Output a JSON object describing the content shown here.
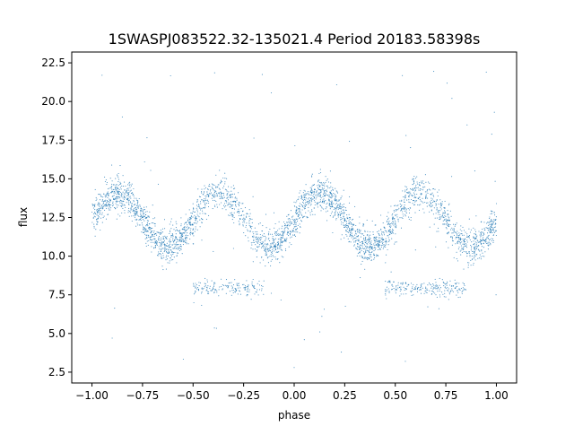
{
  "chart_data": {
    "type": "scatter",
    "title": "1SWASPJ083522.32-135021.4 Period 20183.58398s",
    "xlabel": "phase",
    "ylabel": "flux",
    "xlim": [
      -1.1,
      1.1
    ],
    "ylim": [
      1.8,
      23.2
    ],
    "x_ticks": [
      -1.0,
      -0.75,
      -0.5,
      -0.25,
      0.0,
      0.25,
      0.5,
      0.75,
      1.0
    ],
    "x_tick_labels": [
      "−1.00",
      "−0.75",
      "−0.50",
      "−0.25",
      "0.00",
      "0.25",
      "0.50",
      "0.75",
      "1.00"
    ],
    "y_ticks": [
      2.5,
      5.0,
      7.5,
      10.0,
      12.5,
      15.0,
      17.5,
      20.0,
      22.5
    ],
    "y_tick_labels": [
      "2.5",
      "5.0",
      "7.5",
      "10.0",
      "12.5",
      "15.0",
      "17.5",
      "20.0",
      "22.5"
    ],
    "grid": false,
    "marker_color": "#1f77b4",
    "phase_range": [
      -1.0,
      1.0
    ],
    "light_curve_model": {
      "mean_flux": 12.35,
      "amplitude": 1.75,
      "peak_phase": 0.125,
      "noise": 0.55,
      "low_branch_flux": 7.95,
      "low_branch_phase_windows": [
        [
          -0.5,
          -0.15
        ],
        [
          0.45,
          0.85
        ]
      ]
    },
    "outlier_flux_range": [
      2.8,
      22.0
    ],
    "points": [
      [
        -0.98,
        13.6
      ],
      [
        -0.9,
        14.2
      ],
      [
        -0.8,
        14.1
      ],
      [
        -0.7,
        13.3
      ],
      [
        -0.6,
        12.0
      ],
      [
        -0.5,
        10.8
      ],
      [
        -0.4,
        10.3
      ],
      [
        -0.3,
        10.5
      ],
      [
        -0.2,
        11.3
      ],
      [
        -0.1,
        12.8
      ],
      [
        0.0,
        13.5
      ],
      [
        0.1,
        14.1
      ],
      [
        0.2,
        14.0
      ],
      [
        0.3,
        13.2
      ],
      [
        0.4,
        12.0
      ],
      [
        0.5,
        10.9
      ],
      [
        0.6,
        10.4
      ],
      [
        0.7,
        10.6
      ],
      [
        0.8,
        11.5
      ],
      [
        0.9,
        12.6
      ],
      [
        1.0,
        13.4
      ],
      [
        -0.4,
        7.9
      ],
      [
        -0.3,
        7.8
      ],
      [
        -0.2,
        8.0
      ],
      [
        0.6,
        7.9
      ],
      [
        0.7,
        7.9
      ],
      [
        0.8,
        8.0
      ],
      [
        -0.95,
        21.7
      ],
      [
        0.95,
        21.9
      ],
      [
        -0.9,
        4.7
      ],
      [
        0.05,
        4.6
      ],
      [
        0.0,
        2.8
      ],
      [
        0.55,
        3.2
      ],
      [
        0.78,
        20.2
      ],
      [
        -0.85,
        19.0
      ],
      [
        0.99,
        19.3
      ]
    ]
  }
}
